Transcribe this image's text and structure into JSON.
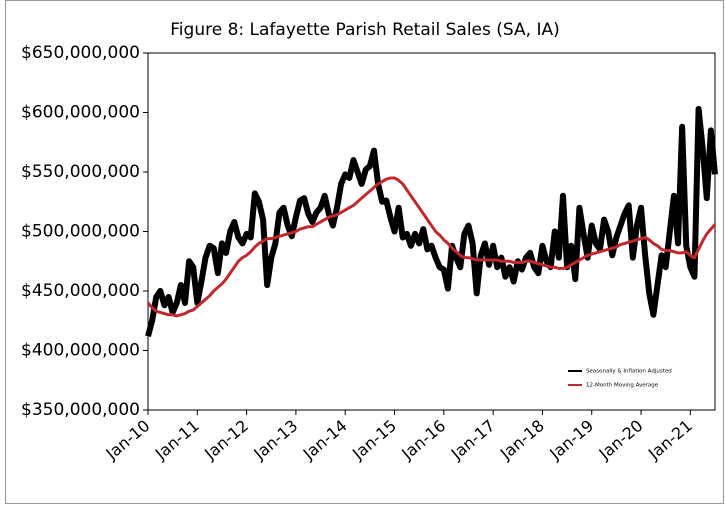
{
  "chart_data": {
    "type": "line",
    "title": "Figure 8: Lafayette Parish Retail Sales (SA, IA)",
    "categories": [
      "Jan-10",
      null,
      null,
      null,
      null,
      null,
      null,
      null,
      null,
      null,
      null,
      null,
      "Jan-11",
      null,
      null,
      null,
      null,
      null,
      null,
      null,
      null,
      null,
      null,
      null,
      "Jan-12",
      null,
      null,
      null,
      null,
      null,
      null,
      null,
      null,
      null,
      null,
      null,
      "Jan-13",
      null,
      null,
      null,
      null,
      null,
      null,
      null,
      null,
      null,
      null,
      null,
      "Jan-14",
      null,
      null,
      null,
      null,
      null,
      null,
      null,
      null,
      null,
      null,
      null,
      "Jan-15",
      null,
      null,
      null,
      null,
      null,
      null,
      null,
      null,
      null,
      null,
      null,
      "Jan-16",
      null,
      null,
      null,
      null,
      null,
      null,
      null,
      null,
      null,
      null,
      null,
      "Jan-17",
      null,
      null,
      null,
      null,
      null,
      null,
      null,
      null,
      null,
      null,
      null,
      "Jan-18",
      null,
      null,
      null,
      null,
      null,
      null,
      null,
      null,
      null,
      null,
      null,
      "Jan-19",
      null,
      null,
      null,
      null,
      null,
      null,
      null,
      null,
      null,
      null,
      null,
      "Jan-20",
      null,
      null,
      null,
      null,
      null,
      null,
      null,
      null,
      null,
      null,
      null,
      "Jan-21",
      null,
      null,
      null,
      null,
      null,
      null
    ],
    "series": [
      {
        "name": "Seasonally & Inflation Adjusted",
        "color": "#000000",
        "width": 6,
        "values": [
          412000000,
          425000000,
          445000000,
          450000000,
          438000000,
          445000000,
          432000000,
          440000000,
          455000000,
          440000000,
          475000000,
          470000000,
          440000000,
          458000000,
          478000000,
          488000000,
          486000000,
          465000000,
          490000000,
          482000000,
          500000000,
          508000000,
          495000000,
          490000000,
          498000000,
          495000000,
          532000000,
          525000000,
          510000000,
          455000000,
          478000000,
          490000000,
          516000000,
          520000000,
          505000000,
          496000000,
          512000000,
          526000000,
          528000000,
          515000000,
          508000000,
          516000000,
          520000000,
          530000000,
          515000000,
          505000000,
          520000000,
          540000000,
          548000000,
          545000000,
          560000000,
          550000000,
          540000000,
          552000000,
          555000000,
          568000000,
          540000000,
          525000000,
          526000000,
          512000000,
          500000000,
          520000000,
          495000000,
          498000000,
          488000000,
          498000000,
          490000000,
          502000000,
          485000000,
          488000000,
          478000000,
          470000000,
          468000000,
          452000000,
          488000000,
          478000000,
          470000000,
          498000000,
          505000000,
          490000000,
          448000000,
          480000000,
          490000000,
          472000000,
          488000000,
          470000000,
          478000000,
          462000000,
          470000000,
          458000000,
          475000000,
          468000000,
          478000000,
          482000000,
          470000000,
          465000000,
          488000000,
          475000000,
          470000000,
          500000000,
          478000000,
          530000000,
          470000000,
          488000000,
          460000000,
          520000000,
          498000000,
          478000000,
          505000000,
          490000000,
          485000000,
          510000000,
          500000000,
          480000000,
          495000000,
          505000000,
          515000000,
          522000000,
          478000000,
          505000000,
          520000000,
          480000000,
          448000000,
          430000000,
          455000000,
          480000000,
          470000000,
          500000000,
          530000000,
          490000000,
          588000000,
          488000000,
          470000000,
          462000000,
          603000000,
          570000000,
          528000000,
          585000000,
          548000000
        ]
      },
      {
        "name": "12-Month Moving Average",
        "color": "#c0282d",
        "width": 3,
        "values": [
          440000000,
          436000000,
          433000000,
          432000000,
          431000000,
          430000000,
          430000000,
          429000000,
          430000000,
          431000000,
          433000000,
          434000000,
          437000000,
          440000000,
          443000000,
          446000000,
          450000000,
          453000000,
          456000000,
          460000000,
          465000000,
          470000000,
          475000000,
          478000000,
          480000000,
          483000000,
          487000000,
          490000000,
          492000000,
          494000000,
          494000000,
          495000000,
          496000000,
          497000000,
          498000000,
          499000000,
          500000000,
          502000000,
          503000000,
          504000000,
          504000000,
          506000000,
          508000000,
          510000000,
          512000000,
          513000000,
          514000000,
          516000000,
          518000000,
          520000000,
          522000000,
          525000000,
          528000000,
          531000000,
          534000000,
          537000000,
          540000000,
          542000000,
          544000000,
          545000000,
          545000000,
          543000000,
          540000000,
          535000000,
          530000000,
          525000000,
          520000000,
          515000000,
          510000000,
          505000000,
          500000000,
          497000000,
          493000000,
          490000000,
          486000000,
          483000000,
          480000000,
          478000000,
          478000000,
          477000000,
          476000000,
          476000000,
          476000000,
          476000000,
          476000000,
          476000000,
          475000000,
          475000000,
          475000000,
          474000000,
          474000000,
          474000000,
          475000000,
          475000000,
          474000000,
          473000000,
          472000000,
          471000000,
          470000000,
          470000000,
          469000000,
          469000000,
          470000000,
          472000000,
          474000000,
          476000000,
          478000000,
          480000000,
          481000000,
          482000000,
          483000000,
          484000000,
          485000000,
          486000000,
          487000000,
          489000000,
          490000000,
          491000000,
          492000000,
          493000000,
          494000000,
          495000000,
          493000000,
          490000000,
          488000000,
          485000000,
          484000000,
          484000000,
          483000000,
          482000000,
          482000000,
          483000000,
          480000000,
          478000000,
          485000000,
          492000000,
          498000000,
          502000000,
          506000000
        ]
      }
    ],
    "ylim": [
      350000000,
      650000000
    ],
    "yticks": [
      {
        "value": 350000000,
        "label": "$350,000,000"
      },
      {
        "value": 400000000,
        "label": "$400,000,000"
      },
      {
        "value": 450000000,
        "label": "$450,000,000"
      },
      {
        "value": 500000000,
        "label": "$500,000,000"
      },
      {
        "value": 550000000,
        "label": "$550,000,000"
      },
      {
        "value": 600000000,
        "label": "$600,000,000"
      },
      {
        "value": 650000000,
        "label": "$650,000,000"
      }
    ],
    "grid": false,
    "legend": "lower right"
  }
}
